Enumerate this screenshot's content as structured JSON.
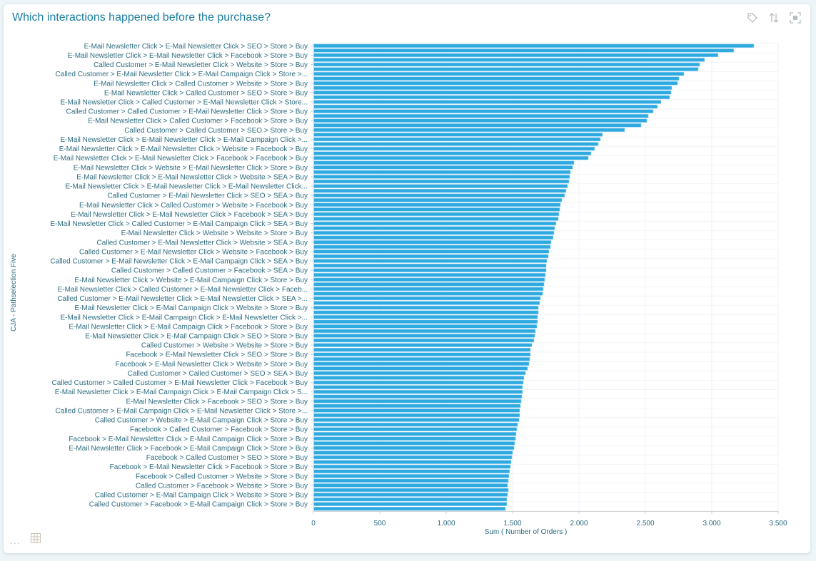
{
  "header": {
    "title": "Which interactions happened before the purchase?"
  },
  "toolbar": {
    "icons": [
      "tag-icon",
      "sort-icon",
      "fullscreen-icon"
    ]
  },
  "footer": {
    "icons": [
      "more-icon",
      "table-icon"
    ],
    "more_label": "..."
  },
  "chart_data": {
    "type": "bar",
    "orientation": "horizontal",
    "title": "Which interactions happened before the purchase?",
    "xlabel": "Sum ( Number of Orders )",
    "ylabel": "CJA - Pathselection Five",
    "xlim": [
      0,
      3500
    ],
    "xticks": [
      0,
      500,
      1000,
      1500,
      2000,
      2500,
      3000,
      3500
    ],
    "xtick_labels": [
      "0",
      "500",
      "1.000",
      "1.500",
      "2.000",
      "2.500",
      "3.000",
      "3.500"
    ],
    "grid": true,
    "bar_color": "#2eaae1",
    "categories": [
      "E-Mail Newsletter Click > E-Mail Newsletter Click > SEO > Store > Buy",
      "",
      "E-Mail Newsletter Click > E-Mail Newsletter Click > Facebook > Store > Buy",
      "",
      "Called Customer > E-Mail Newsletter Click > Website > Store > Buy",
      "",
      "Called Customer > E-Mail Newsletter Click > E-Mail Campaign Click > Store >...",
      "",
      "E-Mail Newsletter Click > Called Customer > Website > Store > Buy",
      "",
      "E-Mail Newsletter Click > Called Customer > SEO > Store > Buy",
      "",
      "E-Mail Newsletter Click > Called Customer > E-Mail Newsletter Click > Store...",
      "",
      "Called Customer > Called Customer > E-Mail Newsletter Click > Store > Buy",
      "",
      "E-Mail Newsletter Click > Called Customer > Facebook > Store > Buy",
      "",
      "Called Customer > Called Customer > SEO > Store > Buy",
      "",
      "E-Mail Newsletter Click > E-Mail Newsletter Click > E-Mail Campaign Click >...",
      "",
      "E-Mail Newsletter Click > E-Mail Newsletter Click > Website > Facebook > Buy",
      "",
      "E-Mail Newsletter Click > E-Mail Newsletter Click > Facebook > Facebook > Buy",
      "",
      "E-Mail Newsletter Click > Website > E-Mail Newsletter Click > Store > Buy",
      "",
      "E-Mail Newsletter Click > E-Mail Newsletter Click > Website > SEA > Buy",
      "",
      "E-Mail Newsletter Click > E-Mail Newsletter Click > E-Mail Newsletter Click...",
      "",
      "Called Customer > E-Mail Newsletter Click > SEO > SEA > Buy",
      "",
      "E-Mail Newsletter Click > Called Customer > Website > Facebook > Buy",
      "",
      "E-Mail Newsletter Click > E-Mail Newsletter Click > Facebook > SEA > Buy",
      "",
      "E-Mail Newsletter Click > Called Customer > E-Mail Campaign Click > SEA > Buy",
      "",
      "E-Mail Newsletter Click > Website > Website > Store > Buy",
      "",
      "Called Customer > E-Mail Newsletter Click > Website > SEA > Buy",
      "",
      "Called Customer > E-Mail Newsletter Click > Website > Facebook > Buy",
      "",
      "Called Customer > E-Mail Newsletter Click > E-Mail Campaign Click > SEA > Buy",
      "",
      "Called Customer > Called Customer > Facebook > SEA > Buy",
      "",
      "E-Mail Newsletter Click > Website > E-Mail Campaign Click > Store > Buy",
      "",
      "E-Mail Newsletter Click > Called Customer > E-Mail Newsletter Click > Faceb...",
      "",
      "Called Customer > E-Mail Newsletter Click > E-Mail Newsletter Click > SEA >...",
      "",
      "E-Mail Newsletter Click > E-Mail Campaign Click > Website > Store > Buy",
      "",
      "E-Mail Newsletter Click > E-Mail Campaign Click > E-Mail Newsletter Click >...",
      "",
      "E-Mail Newsletter Click > E-Mail Campaign Click > Facebook > Store > Buy",
      "",
      "E-Mail Newsletter Click > E-Mail Campaign Click > SEO > Store > Buy",
      "",
      "Called Customer > Website > Website > Store > Buy",
      "",
      "Facebook > E-Mail Newsletter Click > SEO > Store > Buy",
      "",
      "Facebook > E-Mail Newsletter Click > Website > Store > Buy",
      "",
      "Called Customer > Called Customer > SEO > SEA > Buy",
      "",
      "Called Customer > Called Customer > E-Mail Newsletter Click > Facebook > Buy",
      "",
      "E-Mail Newsletter Click > E-Mail Campaign Click > E-Mail Campaign Click > S...",
      "",
      "E-Mail Newsletter Click > Facebook > SEO > Store > Buy",
      "",
      "Called Customer > E-Mail Campaign Click > E-Mail Newsletter Click > Store >...",
      "",
      "Called Customer > Website > E-Mail Campaign Click > Store > Buy",
      "",
      "Facebook > Called Customer > Facebook > Store > Buy",
      "",
      "Facebook > E-Mail Newsletter Click > E-Mail Campaign Click > Store > Buy",
      "",
      "E-Mail Newsletter Click > Facebook > E-Mail Campaign Click > Store > Buy",
      "",
      "Facebook > Called Customer > SEO > Store > Buy",
      "",
      "Facebook > E-Mail Newsletter Click > Facebook > Store > Buy",
      "",
      "Facebook > Called Customer > Website > Store > Buy",
      "",
      "Called Customer > Facebook > Website > Store > Buy",
      "",
      "Called Customer > E-Mail Campaign Click > Website > Store > Buy",
      "",
      "Called Customer > Facebook > E-Mail Campaign Click > Store > Buy",
      ""
    ],
    "values": [
      3317,
      3166,
      3048,
      2946,
      2909,
      2898,
      2790,
      2753,
      2742,
      2699,
      2694,
      2683,
      2618,
      2591,
      2559,
      2522,
      2511,
      2468,
      2344,
      2177,
      2161,
      2145,
      2118,
      2091,
      2070,
      1963,
      1952,
      1936,
      1930,
      1925,
      1914,
      1903,
      1892,
      1871,
      1860,
      1855,
      1849,
      1844,
      1828,
      1817,
      1812,
      1806,
      1790,
      1785,
      1774,
      1769,
      1758,
      1753,
      1753,
      1747,
      1742,
      1737,
      1731,
      1726,
      1710,
      1704,
      1694,
      1694,
      1688,
      1688,
      1683,
      1672,
      1667,
      1661,
      1645,
      1634,
      1634,
      1629,
      1624,
      1613,
      1597,
      1586,
      1581,
      1575,
      1575,
      1570,
      1565,
      1559,
      1554,
      1554,
      1549,
      1538,
      1532,
      1527,
      1522,
      1516,
      1511,
      1500,
      1495,
      1489,
      1484,
      1478,
      1473,
      1468,
      1462,
      1468,
      1462,
      1457,
      1457,
      1446
    ]
  }
}
